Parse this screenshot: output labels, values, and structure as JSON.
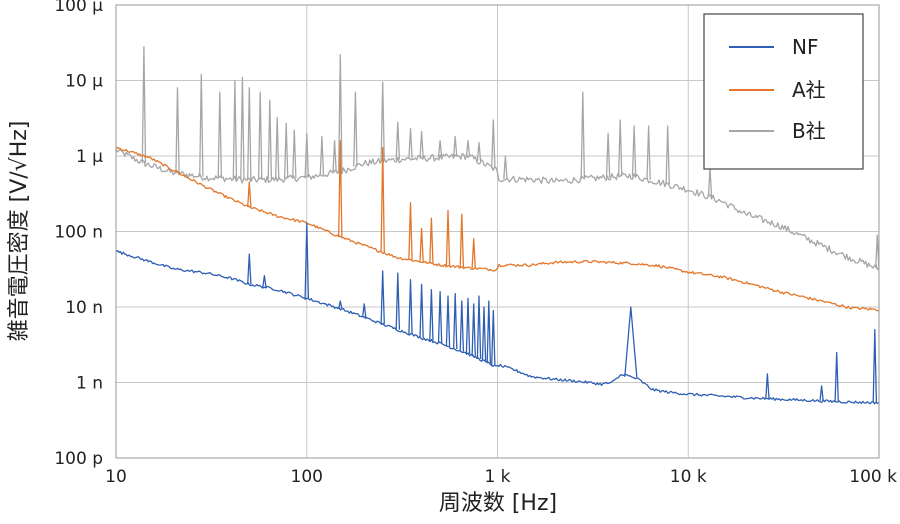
{
  "chart_data": {
    "type": "line",
    "title": "",
    "xlabel": "周波数 [Hz]",
    "ylabel": "雑音電圧密度 [V/√Hz]",
    "x_scale": "log",
    "y_scale": "log",
    "xlim": [
      10,
      100000
    ],
    "ylim": [
      1e-10,
      0.0001
    ],
    "x_ticks": [
      {
        "value": 10,
        "label": "10"
      },
      {
        "value": 100,
        "label": "100"
      },
      {
        "value": 1000,
        "label": "1 k"
      },
      {
        "value": 10000,
        "label": "10 k"
      },
      {
        "value": 100000,
        "label": "100 k"
      }
    ],
    "y_ticks": [
      {
        "value": 1e-10,
        "label": "100 p"
      },
      {
        "value": 1e-09,
        "label": "1 n"
      },
      {
        "value": 1e-08,
        "label": "10 n"
      },
      {
        "value": 1e-07,
        "label": "100 n"
      },
      {
        "value": 1e-06,
        "label": "1 µ"
      },
      {
        "value": 1e-05,
        "label": "10 µ"
      },
      {
        "value": 0.0001,
        "label": "100 µ"
      }
    ],
    "grid": true,
    "legend_position": "top-right",
    "series": [
      {
        "name": "NF",
        "color": "#2f5fb3",
        "points": [
          [
            10,
            5.5e-08
          ],
          [
            20,
            3.2e-08
          ],
          [
            30,
            2.8e-08
          ],
          [
            40,
            2.4e-08
          ],
          [
            50,
            2e-08
          ],
          [
            70,
            1.7e-08
          ],
          [
            100,
            1.3e-08
          ],
          [
            150,
            9.5e-09
          ],
          [
            200,
            7.3e-09
          ],
          [
            300,
            5e-09
          ],
          [
            400,
            3.9e-09
          ],
          [
            500,
            3.3e-09
          ],
          [
            700,
            2.4e-09
          ],
          [
            990,
            1.6e-09
          ],
          [
            1010,
            1.7e-09
          ],
          [
            1200,
            1.5e-09
          ],
          [
            1500,
            1.2e-09
          ],
          [
            2000,
            1.1e-09
          ],
          [
            2500,
            1.05e-09
          ],
          [
            3000,
            1e-09
          ],
          [
            3500,
            9.5e-10
          ],
          [
            4000,
            1e-09
          ],
          [
            4500,
            1.3e-09
          ],
          [
            5500,
            1.1e-09
          ],
          [
            6500,
            8e-10
          ],
          [
            8000,
            7.4e-10
          ],
          [
            10000,
            7e-10
          ],
          [
            15000,
            6.6e-10
          ],
          [
            20000,
            6.3e-10
          ],
          [
            30000,
            6e-10
          ],
          [
            50000,
            5.7e-10
          ],
          [
            70000,
            5.5e-10
          ],
          [
            100000,
            5.4e-10
          ]
        ],
        "peaks": [
          [
            50,
            5e-08
          ],
          [
            60,
            2.6e-08
          ],
          [
            100,
            1.3e-07
          ],
          [
            150,
            1.2e-08
          ],
          [
            200,
            1.1e-08
          ],
          [
            250,
            3e-08
          ],
          [
            300,
            2.8e-08
          ],
          [
            350,
            2.3e-08
          ],
          [
            400,
            2e-08
          ],
          [
            450,
            1.7e-08
          ],
          [
            500,
            1.6e-08
          ],
          [
            550,
            1.4e-08
          ],
          [
            600,
            1.5e-08
          ],
          [
            650,
            1.2e-08
          ],
          [
            700,
            1.3e-08
          ],
          [
            750,
            1.1e-08
          ],
          [
            800,
            1.4e-08
          ],
          [
            850,
            1e-08
          ],
          [
            900,
            1.2e-08
          ],
          [
            950,
            9e-09
          ],
          [
            5000,
            1e-08
          ],
          [
            26000,
            1.3e-09
          ],
          [
            50000,
            9e-10
          ],
          [
            60000,
            2.5e-09
          ],
          [
            95000,
            5e-09
          ]
        ]
      },
      {
        "name": "A社",
        "color": "#e37628",
        "points": [
          [
            10,
            1.3e-06
          ],
          [
            15,
            9.5e-07
          ],
          [
            20,
            6.5e-07
          ],
          [
            30,
            3.8e-07
          ],
          [
            40,
            2.7e-07
          ],
          [
            50,
            2.1e-07
          ],
          [
            70,
            1.6e-07
          ],
          [
            100,
            1.3e-07
          ],
          [
            150,
            8.5e-08
          ],
          [
            200,
            6.5e-08
          ],
          [
            300,
            4.5e-08
          ],
          [
            500,
            3.6e-08
          ],
          [
            700,
            3.3e-08
          ],
          [
            990,
            3.1e-08
          ],
          [
            1010,
            3.6e-08
          ],
          [
            1500,
            3.6e-08
          ],
          [
            2000,
            3.9e-08
          ],
          [
            3000,
            4e-08
          ],
          [
            5000,
            3.8e-08
          ],
          [
            7000,
            3.5e-08
          ],
          [
            10000,
            2.9e-08
          ],
          [
            15000,
            2.5e-08
          ],
          [
            20000,
            2.1e-08
          ],
          [
            30000,
            1.6e-08
          ],
          [
            50000,
            1.2e-08
          ],
          [
            70000,
            9.8e-09
          ],
          [
            100000,
            9.2e-09
          ]
        ],
        "peaks": [
          [
            50,
            4.5e-07
          ],
          [
            150,
            1.6e-06
          ],
          [
            250,
            1.3e-06
          ],
          [
            350,
            2.4e-07
          ],
          [
            400,
            1.1e-07
          ],
          [
            450,
            1.5e-07
          ],
          [
            550,
            1.9e-07
          ],
          [
            650,
            1.7e-07
          ],
          [
            750,
            8e-08
          ]
        ]
      },
      {
        "name": "B社",
        "color": "#a6a6a6",
        "points": [
          [
            10,
            1.2e-06
          ],
          [
            14,
            8e-07
          ],
          [
            20,
            6e-07
          ],
          [
            30,
            5.2e-07
          ],
          [
            50,
            4.8e-07
          ],
          [
            70,
            4.9e-07
          ],
          [
            100,
            5.2e-07
          ],
          [
            150,
            6.2e-07
          ],
          [
            200,
            8e-07
          ],
          [
            300,
            9e-07
          ],
          [
            500,
            9.5e-07
          ],
          [
            700,
            1e-06
          ],
          [
            990,
            6.5e-07
          ],
          [
            1010,
            5e-07
          ],
          [
            1500,
            4.9e-07
          ],
          [
            2000,
            4.6e-07
          ],
          [
            3000,
            5e-07
          ],
          [
            5000,
            5.5e-07
          ],
          [
            7000,
            4.5e-07
          ],
          [
            10000,
            3.6e-07
          ],
          [
            15000,
            2.5e-07
          ],
          [
            20000,
            1.7e-07
          ],
          [
            30000,
            1.2e-07
          ],
          [
            50000,
            6.5e-08
          ],
          [
            70000,
            4.5e-08
          ],
          [
            100000,
            3.2e-08
          ]
        ],
        "peaks": [
          [
            14,
            2.8e-05
          ],
          [
            21,
            8e-06
          ],
          [
            28,
            1.2e-05
          ],
          [
            35,
            7e-06
          ],
          [
            42,
            1e-05
          ],
          [
            46,
            1.1e-05
          ],
          [
            50,
            8e-06
          ],
          [
            57,
            7e-06
          ],
          [
            64,
            5.5e-06
          ],
          [
            70,
            3.2e-06
          ],
          [
            78,
            2.7e-06
          ],
          [
            86,
            2.2e-06
          ],
          [
            100,
            2e-06
          ],
          [
            120,
            1.8e-06
          ],
          [
            140,
            1.6e-06
          ],
          [
            150,
            2.2e-05
          ],
          [
            180,
            7e-06
          ],
          [
            250,
            9.5e-06
          ],
          [
            300,
            2.8e-06
          ],
          [
            350,
            2.3e-06
          ],
          [
            400,
            2.1e-06
          ],
          [
            500,
            1.6e-06
          ],
          [
            600,
            1.8e-06
          ],
          [
            700,
            1.6e-06
          ],
          [
            800,
            1.5e-06
          ],
          [
            950,
            3e-06
          ],
          [
            1100,
            1e-06
          ],
          [
            2800,
            7e-06
          ],
          [
            3800,
            2e-06
          ],
          [
            4400,
            3e-06
          ],
          [
            5200,
            2.5e-06
          ],
          [
            6200,
            2.5e-06
          ],
          [
            7800,
            2.5e-06
          ],
          [
            13000,
            7e-07
          ],
          [
            98000,
            9e-08
          ]
        ]
      }
    ]
  }
}
